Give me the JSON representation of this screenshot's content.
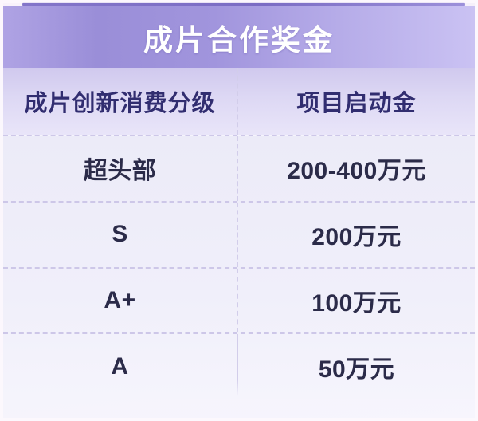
{
  "title": "成片合作奖金",
  "table": {
    "headers": [
      "成片创新消费分级",
      "项目启动金"
    ],
    "rows": [
      {
        "level": "超头部",
        "amount": "200-400万元"
      },
      {
        "level": "S",
        "amount": "200万元"
      },
      {
        "level": "A+",
        "amount": "100万元"
      },
      {
        "level": "A",
        "amount": "50万元"
      }
    ]
  },
  "colors": {
    "banner_purple": "#9a8ed8",
    "banner_light": "#cac2f3",
    "top_accent": "#7b6cc4",
    "header_row_bg": "#ddd8f4",
    "row_bg": "#efedfa",
    "header_text": "#312d70",
    "data_text": "#2b2b49",
    "dashed_divider": "#cdc7e8",
    "title_text": "#ffffff"
  },
  "chart_data": {
    "type": "table",
    "title": "成片合作奖金",
    "columns": [
      "成片创新消费分级",
      "项目启动金"
    ],
    "rows": [
      [
        "超头部",
        "200-400万元"
      ],
      [
        "S",
        "200万元"
      ],
      [
        "A+",
        "100万元"
      ],
      [
        "A",
        "50万元"
      ]
    ]
  }
}
